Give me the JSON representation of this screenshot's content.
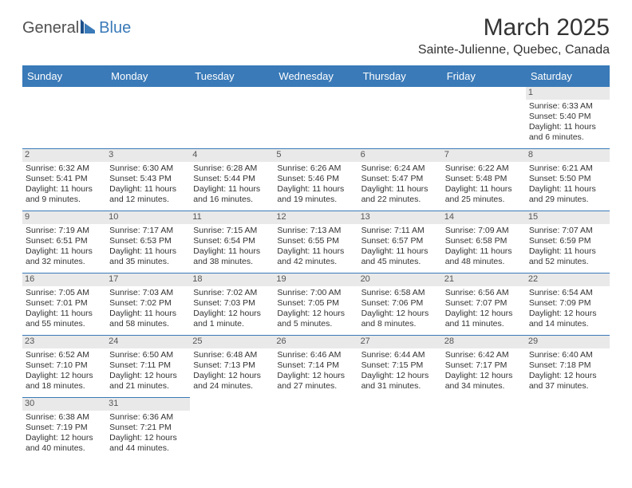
{
  "brand": {
    "part1": "General",
    "part2": "Blue"
  },
  "title": "March 2025",
  "location": "Sainte-Julienne, Quebec, Canada",
  "colors": {
    "header_bg": "#3a7ab8",
    "header_text": "#ffffff",
    "cell_border": "#3a7ab8",
    "daynum_bg": "#e9e9e9",
    "text": "#333333",
    "background": "#ffffff"
  },
  "typography": {
    "title_fontsize": 30,
    "location_fontsize": 16,
    "header_fontsize": 13,
    "cell_fontsize": 10.5,
    "daynum_fontsize": 11
  },
  "dayHeaders": [
    "Sunday",
    "Monday",
    "Tuesday",
    "Wednesday",
    "Thursday",
    "Friday",
    "Saturday"
  ],
  "weeks": [
    [
      {
        "empty": true
      },
      {
        "empty": true
      },
      {
        "empty": true
      },
      {
        "empty": true
      },
      {
        "empty": true
      },
      {
        "empty": true
      },
      {
        "day": "1",
        "sunrise": "Sunrise: 6:33 AM",
        "sunset": "Sunset: 5:40 PM",
        "daylight": "Daylight: 11 hours and 6 minutes."
      }
    ],
    [
      {
        "day": "2",
        "sunrise": "Sunrise: 6:32 AM",
        "sunset": "Sunset: 5:41 PM",
        "daylight": "Daylight: 11 hours and 9 minutes."
      },
      {
        "day": "3",
        "sunrise": "Sunrise: 6:30 AM",
        "sunset": "Sunset: 5:43 PM",
        "daylight": "Daylight: 11 hours and 12 minutes."
      },
      {
        "day": "4",
        "sunrise": "Sunrise: 6:28 AM",
        "sunset": "Sunset: 5:44 PM",
        "daylight": "Daylight: 11 hours and 16 minutes."
      },
      {
        "day": "5",
        "sunrise": "Sunrise: 6:26 AM",
        "sunset": "Sunset: 5:46 PM",
        "daylight": "Daylight: 11 hours and 19 minutes."
      },
      {
        "day": "6",
        "sunrise": "Sunrise: 6:24 AM",
        "sunset": "Sunset: 5:47 PM",
        "daylight": "Daylight: 11 hours and 22 minutes."
      },
      {
        "day": "7",
        "sunrise": "Sunrise: 6:22 AM",
        "sunset": "Sunset: 5:48 PM",
        "daylight": "Daylight: 11 hours and 25 minutes."
      },
      {
        "day": "8",
        "sunrise": "Sunrise: 6:21 AM",
        "sunset": "Sunset: 5:50 PM",
        "daylight": "Daylight: 11 hours and 29 minutes."
      }
    ],
    [
      {
        "day": "9",
        "sunrise": "Sunrise: 7:19 AM",
        "sunset": "Sunset: 6:51 PM",
        "daylight": "Daylight: 11 hours and 32 minutes."
      },
      {
        "day": "10",
        "sunrise": "Sunrise: 7:17 AM",
        "sunset": "Sunset: 6:53 PM",
        "daylight": "Daylight: 11 hours and 35 minutes."
      },
      {
        "day": "11",
        "sunrise": "Sunrise: 7:15 AM",
        "sunset": "Sunset: 6:54 PM",
        "daylight": "Daylight: 11 hours and 38 minutes."
      },
      {
        "day": "12",
        "sunrise": "Sunrise: 7:13 AM",
        "sunset": "Sunset: 6:55 PM",
        "daylight": "Daylight: 11 hours and 42 minutes."
      },
      {
        "day": "13",
        "sunrise": "Sunrise: 7:11 AM",
        "sunset": "Sunset: 6:57 PM",
        "daylight": "Daylight: 11 hours and 45 minutes."
      },
      {
        "day": "14",
        "sunrise": "Sunrise: 7:09 AM",
        "sunset": "Sunset: 6:58 PM",
        "daylight": "Daylight: 11 hours and 48 minutes."
      },
      {
        "day": "15",
        "sunrise": "Sunrise: 7:07 AM",
        "sunset": "Sunset: 6:59 PM",
        "daylight": "Daylight: 11 hours and 52 minutes."
      }
    ],
    [
      {
        "day": "16",
        "sunrise": "Sunrise: 7:05 AM",
        "sunset": "Sunset: 7:01 PM",
        "daylight": "Daylight: 11 hours and 55 minutes."
      },
      {
        "day": "17",
        "sunrise": "Sunrise: 7:03 AM",
        "sunset": "Sunset: 7:02 PM",
        "daylight": "Daylight: 11 hours and 58 minutes."
      },
      {
        "day": "18",
        "sunrise": "Sunrise: 7:02 AM",
        "sunset": "Sunset: 7:03 PM",
        "daylight": "Daylight: 12 hours and 1 minute."
      },
      {
        "day": "19",
        "sunrise": "Sunrise: 7:00 AM",
        "sunset": "Sunset: 7:05 PM",
        "daylight": "Daylight: 12 hours and 5 minutes."
      },
      {
        "day": "20",
        "sunrise": "Sunrise: 6:58 AM",
        "sunset": "Sunset: 7:06 PM",
        "daylight": "Daylight: 12 hours and 8 minutes."
      },
      {
        "day": "21",
        "sunrise": "Sunrise: 6:56 AM",
        "sunset": "Sunset: 7:07 PM",
        "daylight": "Daylight: 12 hours and 11 minutes."
      },
      {
        "day": "22",
        "sunrise": "Sunrise: 6:54 AM",
        "sunset": "Sunset: 7:09 PM",
        "daylight": "Daylight: 12 hours and 14 minutes."
      }
    ],
    [
      {
        "day": "23",
        "sunrise": "Sunrise: 6:52 AM",
        "sunset": "Sunset: 7:10 PM",
        "daylight": "Daylight: 12 hours and 18 minutes."
      },
      {
        "day": "24",
        "sunrise": "Sunrise: 6:50 AM",
        "sunset": "Sunset: 7:11 PM",
        "daylight": "Daylight: 12 hours and 21 minutes."
      },
      {
        "day": "25",
        "sunrise": "Sunrise: 6:48 AM",
        "sunset": "Sunset: 7:13 PM",
        "daylight": "Daylight: 12 hours and 24 minutes."
      },
      {
        "day": "26",
        "sunrise": "Sunrise: 6:46 AM",
        "sunset": "Sunset: 7:14 PM",
        "daylight": "Daylight: 12 hours and 27 minutes."
      },
      {
        "day": "27",
        "sunrise": "Sunrise: 6:44 AM",
        "sunset": "Sunset: 7:15 PM",
        "daylight": "Daylight: 12 hours and 31 minutes."
      },
      {
        "day": "28",
        "sunrise": "Sunrise: 6:42 AM",
        "sunset": "Sunset: 7:17 PM",
        "daylight": "Daylight: 12 hours and 34 minutes."
      },
      {
        "day": "29",
        "sunrise": "Sunrise: 6:40 AM",
        "sunset": "Sunset: 7:18 PM",
        "daylight": "Daylight: 12 hours and 37 minutes."
      }
    ],
    [
      {
        "day": "30",
        "sunrise": "Sunrise: 6:38 AM",
        "sunset": "Sunset: 7:19 PM",
        "daylight": "Daylight: 12 hours and 40 minutes."
      },
      {
        "day": "31",
        "sunrise": "Sunrise: 6:36 AM",
        "sunset": "Sunset: 7:21 PM",
        "daylight": "Daylight: 12 hours and 44 minutes."
      },
      {
        "empty": true
      },
      {
        "empty": true
      },
      {
        "empty": true
      },
      {
        "empty": true
      },
      {
        "empty": true
      }
    ]
  ]
}
